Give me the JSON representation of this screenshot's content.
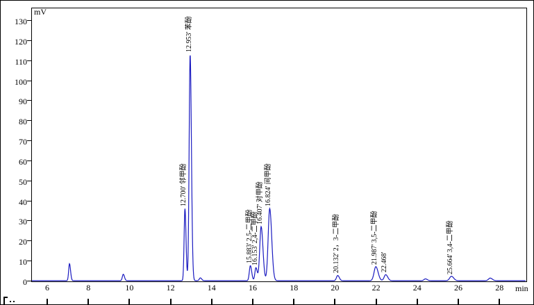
{
  "chart_data": {
    "type": "line",
    "title": "",
    "ylabel": "mV",
    "xlabel": "min",
    "ylim": [
      0,
      136
    ],
    "xlim": [
      5.2,
      29.3
    ],
    "grid": false,
    "legend": false,
    "trace_color": "#1a1ac0",
    "y_ticks": [
      0,
      10,
      20,
      30,
      40,
      50,
      60,
      70,
      80,
      90,
      100,
      110,
      120,
      130
    ],
    "x_ticks": [
      6,
      8,
      10,
      12,
      14,
      16,
      18,
      20,
      22,
      24,
      26,
      28
    ],
    "peaks": [
      {
        "time": 7.083,
        "height_mv": 8.5,
        "sigma": 0.04,
        "label": ""
      },
      {
        "time": 9.7,
        "height_mv": 3.2,
        "sigma": 0.045,
        "label": ""
      },
      {
        "time": 12.7,
        "height_mv": 36,
        "sigma": 0.04,
        "label": "12.700' 邻甲酚"
      },
      {
        "time": 12.953,
        "height_mv": 113,
        "sigma": 0.048,
        "label": "12.953' 苯酚"
      },
      {
        "time": 13.45,
        "height_mv": 1.4,
        "sigma": 0.05,
        "label": ""
      },
      {
        "time": 15.883,
        "height_mv": 7.5,
        "sigma": 0.05,
        "label": "15.883' 2,5-二甲酚"
      },
      {
        "time": 16.153,
        "height_mv": 6.5,
        "sigma": 0.05,
        "label": "16.153' 2,4-二甲酚"
      },
      {
        "time": 16.407,
        "height_mv": 27,
        "sigma": 0.068,
        "label": "16.407' 对甲酚"
      },
      {
        "time": 16.824,
        "height_mv": 36,
        "sigma": 0.075,
        "label": "16.824' 间甲酚"
      },
      {
        "time": 20.132,
        "height_mv": 2.6,
        "sigma": 0.06,
        "label": "20.132' 2，3-二甲酚"
      },
      {
        "time": 21.987,
        "height_mv": 7.0,
        "sigma": 0.085,
        "label": "21.987' 3,5-二甲酚"
      },
      {
        "time": 22.468,
        "height_mv": 3.0,
        "sigma": 0.075,
        "label": "22.468'"
      },
      {
        "time": 24.4,
        "height_mv": 0.9,
        "sigma": 0.07,
        "label": ""
      },
      {
        "time": 25.664,
        "height_mv": 2.2,
        "sigma": 0.085,
        "label": "25.664' 3,4-二甲酚"
      },
      {
        "time": 27.55,
        "height_mv": 1.3,
        "sigma": 0.08,
        "label": ""
      }
    ]
  }
}
